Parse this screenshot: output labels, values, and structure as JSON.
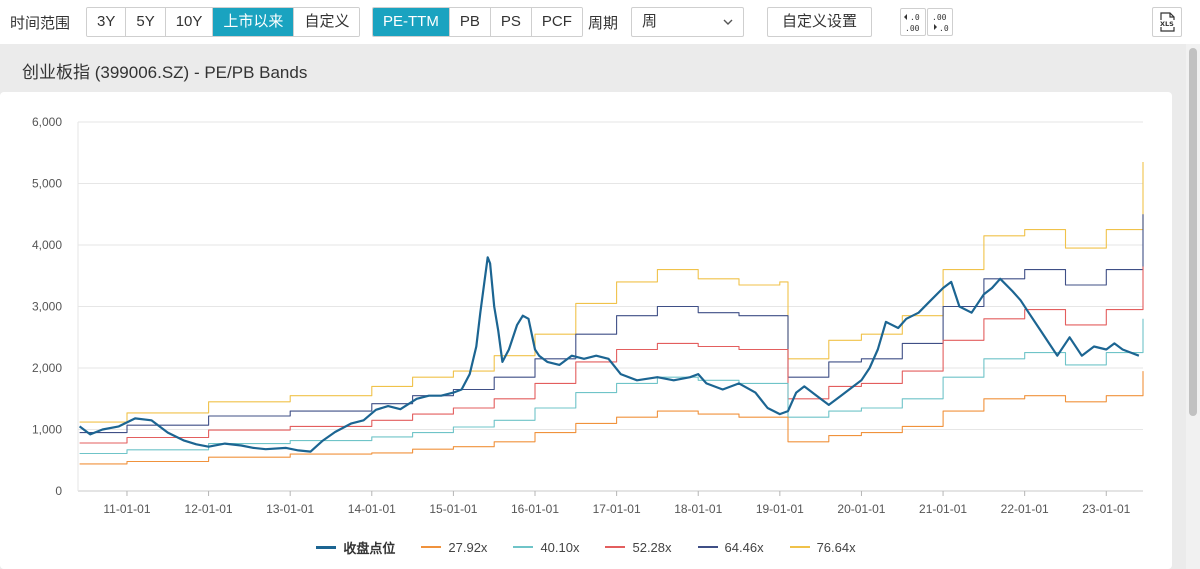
{
  "toolbar": {
    "range_label": "时间范围",
    "range_options": [
      "3Y",
      "5Y",
      "10Y",
      "上市以来",
      "自定义"
    ],
    "range_active": 3,
    "metric_options": [
      "PE-TTM",
      "PB",
      "PS",
      "PCF"
    ],
    "metric_active": 0,
    "period_label": "周期",
    "period_value": "周",
    "custom_settings_label": "自定义设置",
    "decimal_decrease": "+.0\n.00",
    "decimal_increase": ".00\n+.0",
    "export_label": "XLS"
  },
  "header": {
    "title": "创业板指 (399006.SZ) - PE/PB Bands"
  },
  "colors": {
    "accent": "#1aa3c0",
    "close": "#1c6592",
    "b27": "#f0923c",
    "b40": "#6fc4c8",
    "b52": "#e35e5e",
    "b64": "#3f4f86",
    "b76": "#f0c24a"
  },
  "chart_data": {
    "type": "line",
    "title": "创业板指 (399006.SZ) - PE/PB Bands",
    "ylim": [
      0,
      6000
    ],
    "yticks": [
      "0",
      "1,000",
      "2,000",
      "3,000",
      "4,000",
      "5,000",
      "6,000"
    ],
    "ytick_values": [
      0,
      1000,
      2000,
      3000,
      4000,
      5000,
      6000
    ],
    "xlim": [
      2010.4,
      2023.45
    ],
    "xticks": [
      "11-01-01",
      "12-01-01",
      "13-01-01",
      "14-01-01",
      "15-01-01",
      "16-01-01",
      "17-01-01",
      "18-01-01",
      "19-01-01",
      "20-01-01",
      "21-01-01",
      "22-01-01",
      "23-01-01"
    ],
    "xtick_values": [
      2011,
      2012,
      2013,
      2014,
      2015,
      2016,
      2017,
      2018,
      2019,
      2020,
      2021,
      2022,
      2023
    ],
    "grid": "horizontal",
    "legend_position": "bottom",
    "series": [
      {
        "name": "收盘点位",
        "color_key": "close",
        "width": 2.2,
        "x": [
          2010.42,
          2010.55,
          2010.7,
          2010.9,
          2011.1,
          2011.3,
          2011.5,
          2011.7,
          2011.85,
          2012.0,
          2012.2,
          2012.4,
          2012.55,
          2012.7,
          2012.95,
          2013.1,
          2013.25,
          2013.4,
          2013.55,
          2013.75,
          2013.9,
          2014.05,
          2014.2,
          2014.35,
          2014.55,
          2014.7,
          2014.85,
          2015.0,
          2015.1,
          2015.2,
          2015.28,
          2015.33,
          2015.38,
          2015.42,
          2015.45,
          2015.5,
          2015.55,
          2015.6,
          2015.68,
          2015.78,
          2015.85,
          2015.92,
          2016.0,
          2016.05,
          2016.15,
          2016.3,
          2016.45,
          2016.6,
          2016.75,
          2016.9,
          2017.05,
          2017.25,
          2017.5,
          2017.7,
          2017.9,
          2018.0,
          2018.1,
          2018.3,
          2018.5,
          2018.7,
          2018.85,
          2019.0,
          2019.1,
          2019.2,
          2019.3,
          2019.45,
          2019.6,
          2019.75,
          2019.9,
          2020.0,
          2020.1,
          2020.2,
          2020.3,
          2020.45,
          2020.55,
          2020.7,
          2020.85,
          2021.0,
          2021.1,
          2021.2,
          2021.35,
          2021.5,
          2021.6,
          2021.7,
          2021.85,
          2021.95,
          2022.05,
          2022.2,
          2022.3,
          2022.4,
          2022.55,
          2022.7,
          2022.85,
          2023.0,
          2023.1,
          2023.2,
          2023.3,
          2023.4
        ],
        "y": [
          1050,
          920,
          1000,
          1050,
          1180,
          1150,
          950,
          820,
          760,
          720,
          770,
          740,
          700,
          680,
          700,
          660,
          640,
          820,
          960,
          1100,
          1150,
          1320,
          1380,
          1330,
          1500,
          1550,
          1550,
          1600,
          1650,
          1900,
          2350,
          2900,
          3400,
          3800,
          3700,
          3000,
          2600,
          2100,
          2300,
          2700,
          2850,
          2800,
          2300,
          2200,
          2100,
          2050,
          2200,
          2150,
          2200,
          2150,
          1900,
          1800,
          1850,
          1800,
          1850,
          1900,
          1750,
          1650,
          1750,
          1600,
          1350,
          1250,
          1300,
          1600,
          1700,
          1550,
          1400,
          1550,
          1700,
          1800,
          2000,
          2300,
          2750,
          2650,
          2800,
          2900,
          3100,
          3300,
          3400,
          3000,
          2900,
          3200,
          3300,
          3450,
          3250,
          3100,
          2900,
          2600,
          2400,
          2200,
          2500,
          2200,
          2350,
          2300,
          2400,
          2300,
          2250,
          2200
        ]
      },
      {
        "name": "27.92x",
        "color_key": "b27",
        "width": 1.1,
        "x": [
          2010.42,
          2011.0,
          2012.0,
          2013.0,
          2014.0,
          2014.5,
          2015.0,
          2015.5,
          2016.0,
          2016.5,
          2017.0,
          2017.5,
          2018.0,
          2018.5,
          2019.0,
          2019.1,
          2019.3,
          2019.6,
          2020.0,
          2020.5,
          2021.0,
          2021.5,
          2022.0,
          2022.5,
          2023.0,
          2023.45
        ],
        "y": [
          440,
          480,
          550,
          600,
          620,
          680,
          720,
          800,
          950,
          1100,
          1200,
          1300,
          1250,
          1200,
          1200,
          800,
          800,
          900,
          950,
          1050,
          1300,
          1500,
          1550,
          1450,
          1550,
          1950
        ]
      },
      {
        "name": "40.10x",
        "color_key": "b40",
        "width": 1.1,
        "x": [
          2010.42,
          2011.0,
          2012.0,
          2013.0,
          2014.0,
          2014.5,
          2015.0,
          2015.5,
          2016.0,
          2016.5,
          2017.0,
          2017.5,
          2018.0,
          2018.5,
          2019.0,
          2019.1,
          2019.3,
          2019.6,
          2020.0,
          2020.5,
          2021.0,
          2021.5,
          2022.0,
          2022.5,
          2023.0,
          2023.45
        ],
        "y": [
          610,
          670,
          770,
          820,
          880,
          950,
          1040,
          1150,
          1350,
          1600,
          1750,
          1850,
          1800,
          1750,
          1750,
          1200,
          1200,
          1300,
          1350,
          1500,
          1850,
          2150,
          2250,
          2050,
          2250,
          2800
        ]
      },
      {
        "name": "52.28x",
        "color_key": "b52",
        "width": 1.1,
        "x": [
          2010.42,
          2011.0,
          2012.0,
          2013.0,
          2014.0,
          2014.5,
          2015.0,
          2015.5,
          2016.0,
          2016.5,
          2017.0,
          2017.5,
          2018.0,
          2018.5,
          2019.0,
          2019.1,
          2019.3,
          2019.6,
          2020.0,
          2020.5,
          2021.0,
          2021.5,
          2022.0,
          2022.5,
          2023.0,
          2023.45
        ],
        "y": [
          780,
          870,
          990,
          1050,
          1150,
          1250,
          1350,
          1500,
          1750,
          2100,
          2300,
          2400,
          2350,
          2300,
          2300,
          1500,
          1500,
          1700,
          1750,
          1950,
          2450,
          2800,
          2950,
          2700,
          2950,
          3650
        ]
      },
      {
        "name": "64.46x",
        "color_key": "b64",
        "width": 1.1,
        "x": [
          2010.42,
          2011.0,
          2012.0,
          2013.0,
          2014.0,
          2014.5,
          2015.0,
          2015.5,
          2016.0,
          2016.5,
          2017.0,
          2017.5,
          2018.0,
          2018.5,
          2019.0,
          2019.1,
          2019.3,
          2019.6,
          2020.0,
          2020.5,
          2021.0,
          2021.5,
          2022.0,
          2022.5,
          2023.0,
          2023.45
        ],
        "y": [
          950,
          1070,
          1220,
          1300,
          1420,
          1550,
          1650,
          1850,
          2150,
          2550,
          2850,
          3000,
          2900,
          2850,
          2850,
          1850,
          1850,
          2100,
          2150,
          2400,
          3000,
          3450,
          3600,
          3350,
          3600,
          4500
        ]
      },
      {
        "name": "76.64x",
        "color_key": "b76",
        "width": 1.1,
        "x": [
          2010.42,
          2011.0,
          2012.0,
          2013.0,
          2014.0,
          2014.5,
          2015.0,
          2015.5,
          2016.0,
          2016.5,
          2017.0,
          2017.5,
          2018.0,
          2018.5,
          2019.0,
          2019.1,
          2019.3,
          2019.6,
          2020.0,
          2020.5,
          2021.0,
          2021.5,
          2022.0,
          2022.5,
          2023.0,
          2023.45
        ],
        "y": [
          1120,
          1270,
          1450,
          1550,
          1700,
          1850,
          1950,
          2200,
          2550,
          3050,
          3400,
          3600,
          3450,
          3350,
          3400,
          2150,
          2150,
          2450,
          2550,
          2850,
          3600,
          4150,
          4250,
          3950,
          4250,
          5350
        ]
      }
    ]
  }
}
